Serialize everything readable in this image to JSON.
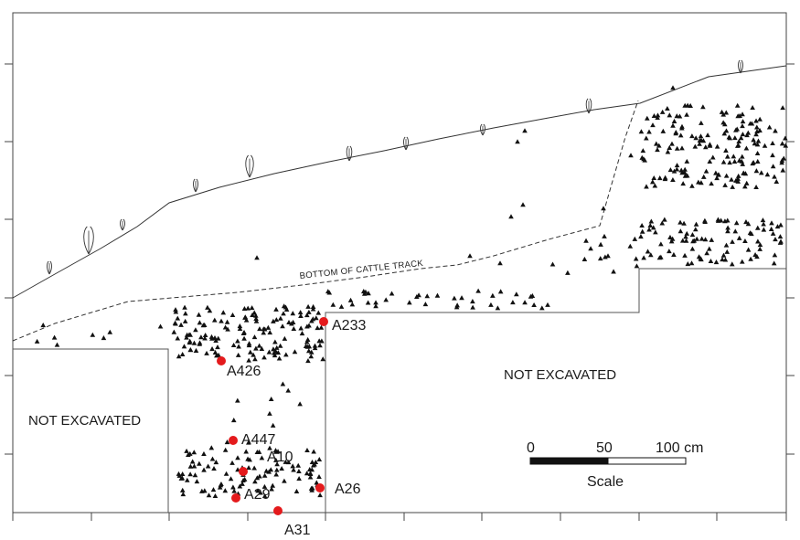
{
  "labels": {
    "cattle_track": "BOTTOM OF CATTLE TRACK",
    "not_excavated_left": "NOT EXCAVATED",
    "not_excavated_right": "NOT EXCAVATED"
  },
  "samples": [
    {
      "id": "A233"
    },
    {
      "id": "A426"
    },
    {
      "id": "A447"
    },
    {
      "id": "A10"
    },
    {
      "id": "A26"
    },
    {
      "id": "A29"
    },
    {
      "id": "A31"
    }
  ],
  "scale": {
    "tick_0": "0",
    "tick_50": "50",
    "tick_100": "100 cm",
    "title": "Scale"
  },
  "colors": {
    "sample_dot": "#e41a1c",
    "artifact": "#111111",
    "line": "#333333"
  }
}
